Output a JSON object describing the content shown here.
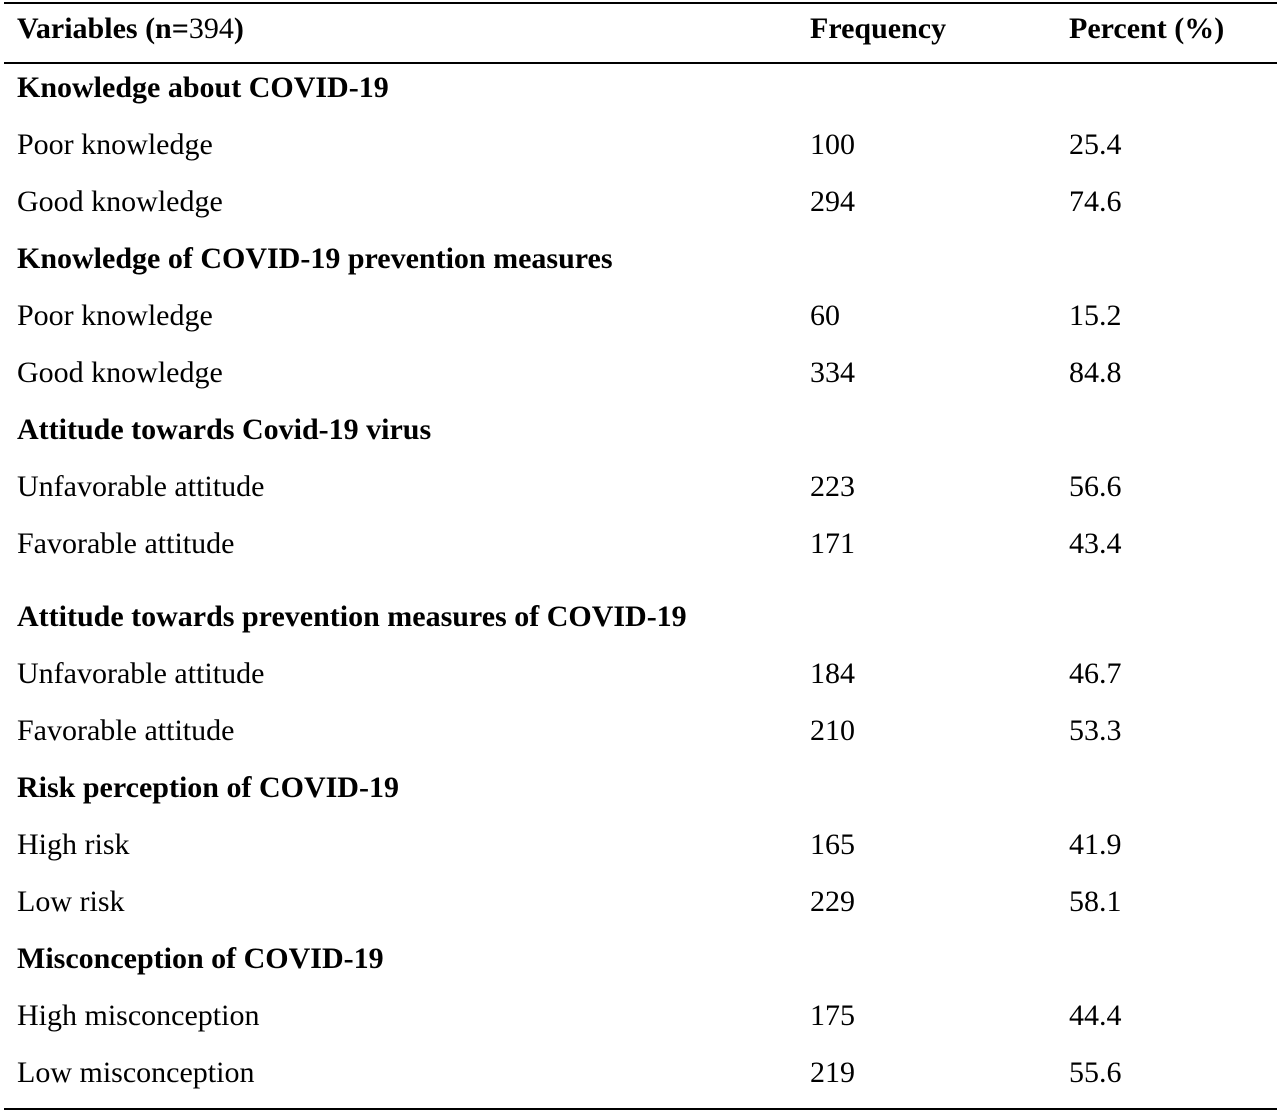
{
  "header": {
    "variables_prefix": "Variables (n=",
    "variables_n": "394",
    "variables_suffix": ")",
    "frequency": "Frequency",
    "percent": "Percent (%)"
  },
  "groups": [
    {
      "title": "Knowledge about COVID-19",
      "rows": [
        {
          "label": "Poor knowledge",
          "frequency": "100",
          "percent": "25.4"
        },
        {
          "label": "Good knowledge",
          "frequency": "294",
          "percent": "74.6"
        }
      ]
    },
    {
      "title": "Knowledge of COVID-19 prevention measures",
      "rows": [
        {
          "label": "Poor knowledge",
          "frequency": "60",
          "percent": "15.2"
        },
        {
          "label": "Good knowledge",
          "frequency": "334",
          "percent": "84.8"
        }
      ]
    },
    {
      "title": "Attitude towards Covid-19 virus",
      "rows": [
        {
          "label": "Unfavorable attitude",
          "frequency": "223",
          "percent": "56.6"
        },
        {
          "label": "Favorable attitude",
          "frequency": "171",
          "percent": "43.4"
        }
      ]
    },
    {
      "title": "Attitude towards prevention measures of COVID-19",
      "rows": [
        {
          "label": "Unfavorable attitude",
          "frequency": "184",
          "percent": "46.7"
        },
        {
          "label": "Favorable attitude",
          "frequency": "210",
          "percent": "53.3"
        }
      ]
    },
    {
      "title": "Risk perception of COVID-19",
      "rows": [
        {
          "label": "High risk",
          "frequency": "165",
          "percent": "41.9"
        },
        {
          "label": "Low risk",
          "frequency": "229",
          "percent": "58.1"
        }
      ]
    },
    {
      "title": "Misconception of COVID-19",
      "rows": [
        {
          "label": "High misconception",
          "frequency": "175",
          "percent": "44.4"
        },
        {
          "label": "Low misconception",
          "frequency": "219",
          "percent": "55.6"
        }
      ]
    }
  ]
}
